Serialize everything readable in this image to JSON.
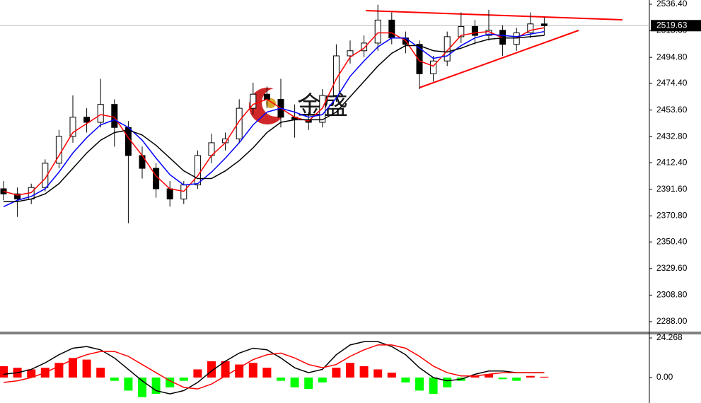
{
  "watermark": "金盛",
  "chart_data": [
    {
      "type": "candlestick",
      "open": [
        2392,
        2388,
        2384,
        2393,
        2412,
        2433,
        2448,
        2444,
        2458,
        2440,
        2418,
        2408,
        2392,
        2384,
        2395,
        2418,
        2428,
        2431,
        2455,
        2466,
        2462,
        2448,
        2446,
        2444,
        2465,
        2496,
        2500,
        2506,
        2524,
        2510,
        2505,
        2482,
        2492,
        2511,
        2519,
        2512,
        2516,
        2505,
        2514,
        2521
      ],
      "high": [
        2398,
        2393,
        2396,
        2415,
        2438,
        2465,
        2455,
        2478,
        2462,
        2445,
        2425,
        2412,
        2398,
        2398,
        2422,
        2435,
        2436,
        2462,
        2475,
        2472,
        2478,
        2458,
        2452,
        2470,
        2505,
        2508,
        2512,
        2536,
        2530,
        2515,
        2508,
        2496,
        2515,
        2530,
        2524,
        2532,
        2520,
        2518,
        2530,
        2526
      ],
      "low": [
        2383,
        2370,
        2380,
        2390,
        2408,
        2428,
        2436,
        2440,
        2425,
        2365,
        2400,
        2385,
        2378,
        2380,
        2392,
        2412,
        2422,
        2428,
        2450,
        2455,
        2440,
        2432,
        2438,
        2440,
        2460,
        2490,
        2495,
        2500,
        2505,
        2498,
        2470,
        2476,
        2488,
        2506,
        2505,
        2508,
        2496,
        2500,
        2510,
        2512
      ],
      "close": [
        2388,
        2384,
        2393,
        2412,
        2433,
        2448,
        2444,
        2458,
        2440,
        2418,
        2408,
        2392,
        2384,
        2395,
        2418,
        2428,
        2431,
        2455,
        2466,
        2462,
        2448,
        2446,
        2444,
        2465,
        2496,
        2500,
        2506,
        2524,
        2510,
        2505,
        2482,
        2492,
        2511,
        2519,
        2512,
        2516,
        2505,
        2514,
        2521,
        2519.63
      ],
      "up_color": "#ffffff",
      "down_color": "#000000",
      "series": [
        {
          "color": "#ff0000",
          "values": [
            2390,
            2387,
            2389,
            2400,
            2418,
            2436,
            2443,
            2450,
            2448,
            2432,
            2418,
            2402,
            2392,
            2390,
            2402,
            2418,
            2428,
            2445,
            2458,
            2462,
            2455,
            2448,
            2445,
            2455,
            2478,
            2495,
            2502,
            2514,
            2514,
            2508,
            2492,
            2488,
            2500,
            2512,
            2514,
            2515,
            2510,
            2510,
            2516,
            2518
          ]
        },
        {
          "color": "#0000ff",
          "values": [
            2378,
            2383,
            2386,
            2392,
            2405,
            2420,
            2432,
            2442,
            2446,
            2440,
            2430,
            2416,
            2403,
            2395,
            2396,
            2405,
            2416,
            2428,
            2442,
            2452,
            2455,
            2452,
            2448,
            2450,
            2463,
            2480,
            2492,
            2503,
            2510,
            2510,
            2502,
            2494,
            2496,
            2504,
            2510,
            2513,
            2512,
            2511,
            2513,
            2515
          ]
        },
        {
          "color": "#000000",
          "values": [
            2382,
            2382,
            2384,
            2388,
            2396,
            2408,
            2420,
            2430,
            2436,
            2438,
            2434,
            2426,
            2416,
            2406,
            2400,
            2400,
            2406,
            2414,
            2424,
            2436,
            2444,
            2446,
            2446,
            2446,
            2452,
            2464,
            2476,
            2488,
            2498,
            2504,
            2504,
            2500,
            2499,
            2502,
            2506,
            2509,
            2510,
            2510,
            2511,
            2512
          ]
        }
      ],
      "last_price": 2519.63,
      "ylim": [
        2279.7,
        2539.7
      ],
      "yticks": [
        {
          "value": 2536.4,
          "label": "2536.40"
        },
        {
          "value": 2515.6,
          "label": "2515.60"
        },
        {
          "value": 2494.8,
          "label": "2494.80"
        },
        {
          "value": 2474.4,
          "label": "2474.40"
        },
        {
          "value": 2453.6,
          "label": "2453.60"
        },
        {
          "value": 2432.8,
          "label": "2432.80"
        },
        {
          "value": 2412.4,
          "label": "2412.40"
        },
        {
          "value": 2391.6,
          "label": "2391.60"
        },
        {
          "value": 2370.8,
          "label": "2370.80"
        },
        {
          "value": 2350.4,
          "label": "2350.40"
        },
        {
          "value": 2329.6,
          "label": "2329.60"
        },
        {
          "value": 2308.8,
          "label": "2308.80"
        },
        {
          "value": 2288,
          "label": "2288.00"
        }
      ]
    },
    {
      "type": "macd",
      "histogram": [
        7,
        6,
        5,
        6,
        9,
        12,
        11,
        6,
        -2,
        -8,
        -12,
        -10,
        -6,
        -2,
        5,
        10,
        10,
        8,
        9,
        6,
        -2,
        -6,
        -7,
        -3,
        6,
        9,
        7,
        5,
        3,
        -3,
        -8,
        -10,
        -6,
        -2,
        1,
        2,
        -1,
        -2,
        1,
        0.5
      ],
      "up_color": "#ff0000",
      "down_color": "#00ff00",
      "series": [
        {
          "color": "#000000",
          "values": [
            2,
            3,
            5,
            9,
            14,
            18,
            19,
            17,
            12,
            5,
            -2,
            -8,
            -10,
            -8,
            -3,
            4,
            10,
            15,
            18,
            17,
            12,
            6,
            3,
            5,
            14,
            20,
            22,
            22,
            19,
            14,
            6,
            0,
            -2,
            -1,
            2,
            4,
            4,
            3,
            3,
            3
          ]
        },
        {
          "color": "#ff0000",
          "values": [
            -3,
            -2,
            0,
            3,
            7,
            11,
            14,
            16,
            16,
            13,
            8,
            3,
            -2,
            -6,
            -7,
            -4,
            1,
            6,
            11,
            14,
            15,
            12,
            8,
            6,
            8,
            13,
            17,
            20,
            20,
            18,
            13,
            7,
            3,
            1,
            1,
            2,
            3,
            3,
            3,
            3
          ]
        }
      ],
      "ylim": [
        -15.6,
        26.87
      ],
      "yticks": [
        24.268,
        {
          "value": 0,
          "label": "0.00"
        }
      ]
    }
  ]
}
